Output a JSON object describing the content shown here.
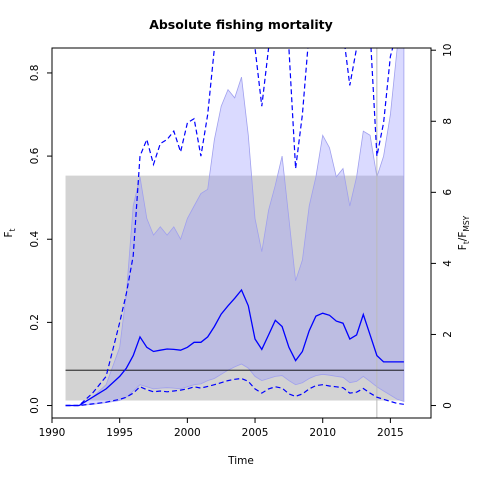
{
  "chart_data": {
    "type": "line",
    "title": "Absolute fishing mortality",
    "xlabel": "Time",
    "ylabel": "F",
    "ylabel_sub": "t",
    "y2label": "F",
    "y2label_sub": "t",
    "y2label_mid": "/F",
    "y2label_sub2": "MSY",
    "xlim": [
      1990,
      2018
    ],
    "ylim": [
      -0.03,
      0.86
    ],
    "y2_scale": 11.7,
    "x_ticks": [
      1990,
      1995,
      2000,
      2005,
      2010,
      2015
    ],
    "y_ticks": [
      0.0,
      0.2,
      0.4,
      0.6,
      0.8
    ],
    "y2_ticks": [
      0,
      2,
      4,
      6,
      8,
      10
    ],
    "y_tick_labels": [
      "0.0",
      "0.2",
      "0.4",
      "0.6",
      "0.8"
    ],
    "y2_tick_labels": [
      "0",
      "2",
      "4",
      "6",
      "8",
      "10"
    ],
    "x_tick_labels": [
      "1990",
      "1995",
      "2000",
      "2005",
      "2010",
      "2015"
    ],
    "grey_band": {
      "x": [
        1991,
        2016
      ],
      "y": [
        0.012,
        0.553
      ]
    },
    "fmsy": 0.085,
    "vline_x": 2014,
    "colors": {
      "estimate": "#0000ff",
      "ci_fill": "#bdbdff",
      "band": "#d3d3d3",
      "ref": "#000000"
    },
    "x": [
      1991,
      1992,
      1993,
      1994,
      1995,
      1995.5,
      1996,
      1996.5,
      1997,
      1997.5,
      1998,
      1998.5,
      1999,
      1999.5,
      2000,
      2000.5,
      2001,
      2001.5,
      2002,
      2002.5,
      2003,
      2003.5,
      2004,
      2004.5,
      2005,
      2005.5,
      2006,
      2006.5,
      2007,
      2007.5,
      2008,
      2008.5,
      2009,
      2009.5,
      2010,
      2010.5,
      2011,
      2011.5,
      2012,
      2012.5,
      2013,
      2013.5,
      2014,
      2014.5,
      2015,
      2015.5,
      2016
    ],
    "series": [
      {
        "role": "estimate",
        "values": [
          0.0,
          0.0,
          0.02,
          0.04,
          0.07,
          0.09,
          0.12,
          0.165,
          0.14,
          0.13,
          0.133,
          0.136,
          0.135,
          0.133,
          0.14,
          0.152,
          0.152,
          0.165,
          0.19,
          0.22,
          0.24,
          0.258,
          0.278,
          0.24,
          0.16,
          0.135,
          0.17,
          0.205,
          0.19,
          0.14,
          0.108,
          0.13,
          0.18,
          0.215,
          0.222,
          0.217,
          0.203,
          0.198,
          0.16,
          0.17,
          0.219,
          0.17,
          0.12,
          0.105,
          0.105,
          0.105,
          0.105
        ]
      },
      {
        "role": "upper",
        "values": [
          0.0,
          0.0,
          0.03,
          0.07,
          0.2,
          0.27,
          0.36,
          0.6,
          0.64,
          0.58,
          0.63,
          0.64,
          0.66,
          0.61,
          0.68,
          0.69,
          0.6,
          0.7,
          0.86,
          0.9,
          0.9,
          0.9,
          0.9,
          0.9,
          0.86,
          0.72,
          0.86,
          0.9,
          0.9,
          0.86,
          0.57,
          0.7,
          0.9,
          0.9,
          0.9,
          0.9,
          0.9,
          0.9,
          0.77,
          0.86,
          0.9,
          0.9,
          0.6,
          0.68,
          0.84,
          0.9,
          0.9
        ]
      },
      {
        "role": "lower",
        "values": [
          0.0,
          0.0,
          0.004,
          0.008,
          0.015,
          0.02,
          0.03,
          0.045,
          0.038,
          0.033,
          0.035,
          0.033,
          0.035,
          0.037,
          0.04,
          0.045,
          0.042,
          0.046,
          0.05,
          0.055,
          0.06,
          0.063,
          0.065,
          0.058,
          0.04,
          0.03,
          0.04,
          0.045,
          0.042,
          0.028,
          0.022,
          0.028,
          0.04,
          0.048,
          0.05,
          0.047,
          0.045,
          0.043,
          0.03,
          0.032,
          0.041,
          0.03,
          0.02,
          0.015,
          0.01,
          0.005,
          0.003
        ]
      },
      {
        "role": "ci_upper",
        "values": [
          0.0,
          0.0,
          0.02,
          0.05,
          0.14,
          0.27,
          0.48,
          0.55,
          0.45,
          0.41,
          0.43,
          0.41,
          0.43,
          0.4,
          0.45,
          0.48,
          0.51,
          0.52,
          0.64,
          0.72,
          0.76,
          0.74,
          0.79,
          0.65,
          0.45,
          0.37,
          0.47,
          0.53,
          0.6,
          0.45,
          0.3,
          0.35,
          0.48,
          0.55,
          0.65,
          0.62,
          0.55,
          0.57,
          0.48,
          0.55,
          0.66,
          0.65,
          0.55,
          0.6,
          0.7,
          0.86,
          0.86
        ]
      },
      {
        "role": "ci_lower",
        "values": [
          0.0,
          0.0,
          0.003,
          0.007,
          0.012,
          0.02,
          0.035,
          0.05,
          0.045,
          0.04,
          0.042,
          0.043,
          0.042,
          0.04,
          0.045,
          0.05,
          0.052,
          0.06,
          0.065,
          0.075,
          0.085,
          0.093,
          0.1,
          0.09,
          0.07,
          0.06,
          0.065,
          0.07,
          0.072,
          0.06,
          0.05,
          0.055,
          0.065,
          0.072,
          0.075,
          0.073,
          0.07,
          0.068,
          0.055,
          0.058,
          0.07,
          0.058,
          0.045,
          0.035,
          0.025,
          0.015,
          0.01
        ]
      }
    ]
  }
}
